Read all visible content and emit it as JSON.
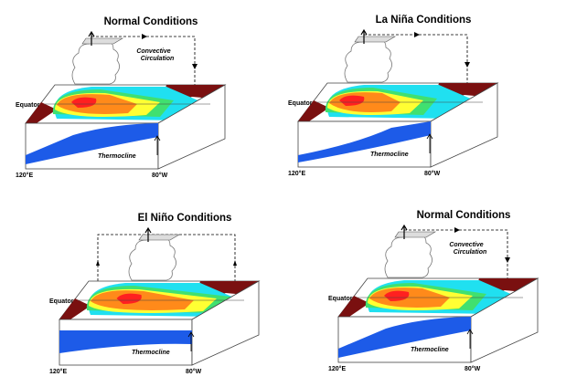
{
  "panels": [
    {
      "title": "Normal Conditions",
      "circulation": "Convective Circulation",
      "circ1": "Convective",
      "circ2": "Circulation",
      "equator": "Equator",
      "thermocline": "Thermocline",
      "west": "120°E",
      "east": "80°W",
      "variant": "normal"
    },
    {
      "title": "La Niña Conditions",
      "equator": "Equator",
      "thermocline": "Thermocline",
      "west": "120°E",
      "east": "80°W",
      "variant": "lanina"
    },
    {
      "title": "El Niño Conditions",
      "equator": "Equator",
      "thermocline": "Thermocline",
      "west": "120°E",
      "east": "80°W",
      "variant": "elnino"
    },
    {
      "title": "Normal Conditions",
      "circ1": "Convective",
      "circ2": "Circulation",
      "equator": "Equator",
      "thermocline": "Thermocline",
      "west": "120°E",
      "east": "80°W",
      "variant": "normal"
    }
  ],
  "colors": {
    "land": "#7a1010",
    "warm": "#ff2020",
    "orange": "#ff8a1a",
    "yellow": "#ffff33",
    "green": "#40e070",
    "cyan": "#20e0f0",
    "water": "#1d5be8"
  }
}
